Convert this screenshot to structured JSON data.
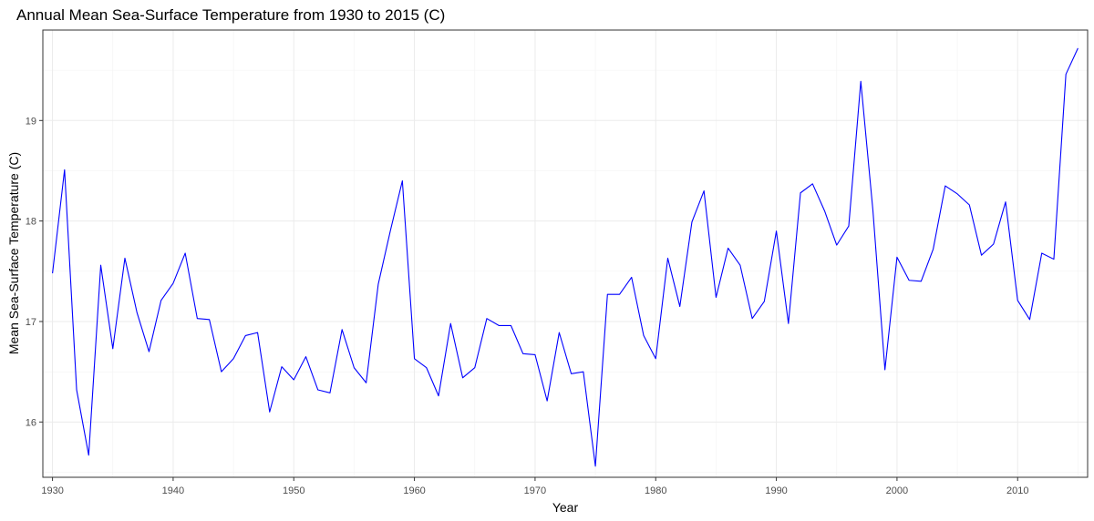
{
  "chart_data": {
    "type": "line",
    "title": "Annual Mean Sea-Surface Temperature from 1930 to 2015 (C)",
    "xlabel": "Year",
    "ylabel": "Mean Sea-Surface Temperature (C)",
    "xlim": [
      1929.2,
      2015.8
    ],
    "ylim": [
      15.45,
      19.9
    ],
    "xticks": [
      1930,
      1940,
      1950,
      1960,
      1970,
      1980,
      1990,
      2000,
      2010
    ],
    "yticks": [
      16,
      17,
      18,
      19
    ],
    "grid": true,
    "line_color": "#0000ff",
    "series": [
      {
        "x": [
          1930,
          1931,
          1932,
          1933,
          1934,
          1935,
          1936,
          1937,
          1938,
          1939,
          1940,
          1941,
          1942,
          1943,
          1944,
          1945,
          1946,
          1947,
          1948,
          1949,
          1950,
          1951,
          1952,
          1953,
          1954,
          1955,
          1956,
          1957,
          1958,
          1959,
          1960,
          1961,
          1962,
          1963,
          1964,
          1965,
          1966,
          1967,
          1968,
          1969,
          1970,
          1971,
          1972,
          1973,
          1974,
          1975,
          1976,
          1977,
          1978,
          1979,
          1980,
          1981,
          1982,
          1983,
          1984,
          1985,
          1986,
          1987,
          1988,
          1989,
          1990,
          1991,
          1992,
          1993,
          1994,
          1995,
          1996,
          1997,
          1998,
          1999,
          2000,
          2001,
          2002,
          2003,
          2004,
          2005,
          2006,
          2007,
          2008,
          2009,
          2010,
          2011,
          2012,
          2013,
          2014,
          2015
        ],
        "values": [
          17.48,
          18.51,
          16.32,
          15.67,
          17.56,
          16.73,
          17.63,
          17.09,
          16.7,
          17.21,
          17.38,
          17.68,
          17.03,
          17.02,
          16.5,
          16.63,
          16.86,
          16.89,
          16.1,
          16.55,
          16.42,
          16.65,
          16.32,
          16.29,
          16.92,
          16.54,
          16.39,
          17.37,
          17.9,
          18.4,
          16.63,
          16.54,
          16.26,
          16.98,
          16.44,
          16.54,
          17.03,
          16.96,
          16.96,
          16.68,
          16.67,
          16.21,
          16.89,
          16.48,
          16.5,
          15.56,
          17.27,
          17.27,
          17.44,
          16.86,
          16.63,
          17.63,
          17.15,
          17.99,
          18.3,
          17.24,
          17.73,
          17.56,
          17.03,
          17.2,
          17.9,
          16.98,
          18.28,
          18.37,
          18.1,
          17.76,
          17.95,
          19.39,
          18.11,
          16.52,
          17.64,
          17.41,
          17.4,
          17.72,
          18.35,
          18.27,
          18.16,
          17.66,
          17.77,
          18.19,
          17.21,
          17.02,
          17.68,
          17.62,
          19.46,
          19.72
        ]
      }
    ]
  }
}
